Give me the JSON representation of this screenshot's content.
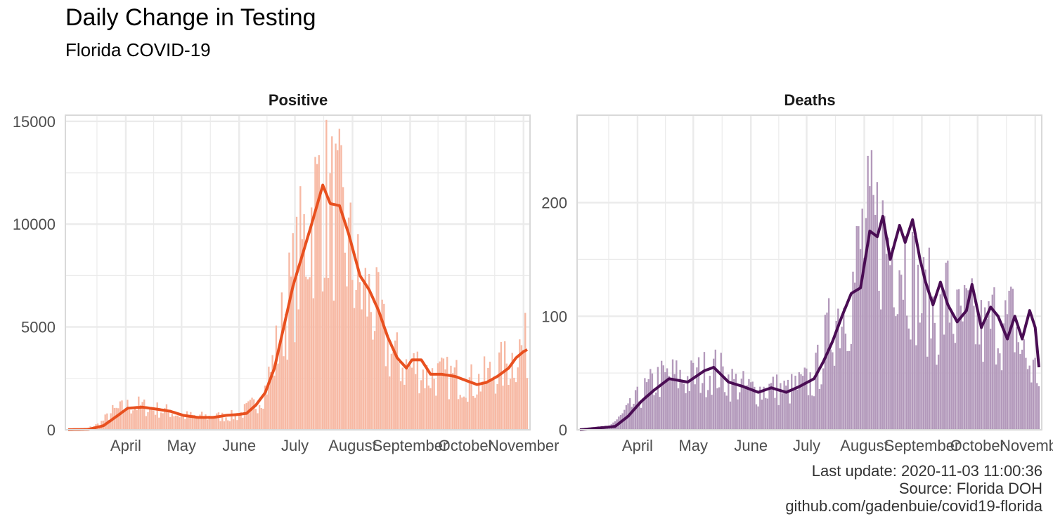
{
  "title": "Daily Change in Testing",
  "subtitle": "Florida COVID-19",
  "caption": {
    "line1": "Last update: 2020-11-03 11:00:36",
    "line2": "Source: Florida DOH",
    "line3": "github.com/gadenbuie/covid19-florida"
  },
  "colors": {
    "positive_bar": "#f7b9a4",
    "positive_line": "#e8501f",
    "deaths_bar": "#b399bb",
    "deaths_line": "#4a0d54",
    "grid": "#ebebeb",
    "panel_border": "#d9d9d9"
  },
  "chart_data": [
    {
      "type": "bar",
      "panel": "Positive",
      "x_start": "2020-03-01",
      "x_end": "2020-11-03",
      "xticks": [
        {
          "date": "2020-04-01",
          "label": "April"
        },
        {
          "date": "2020-05-01",
          "label": "May"
        },
        {
          "date": "2020-06-01",
          "label": "June"
        },
        {
          "date": "2020-07-01",
          "label": "July"
        },
        {
          "date": "2020-08-01",
          "label": "August"
        },
        {
          "date": "2020-09-01",
          "label": "September"
        },
        {
          "date": "2020-10-01",
          "label": "October"
        },
        {
          "date": "2020-11-01",
          "label": "November"
        }
      ],
      "yticks": [
        0,
        5000,
        10000,
        15000
      ],
      "ylim": [
        0,
        15300
      ],
      "daily_keypoints": [
        [
          "2020-03-01",
          0
        ],
        [
          "2020-03-10",
          30
        ],
        [
          "2020-03-18",
          300
        ],
        [
          "2020-03-25",
          900
        ],
        [
          "2020-04-01",
          1150
        ],
        [
          "2020-04-08",
          1200
        ],
        [
          "2020-04-15",
          1050
        ],
        [
          "2020-04-25",
          900
        ],
        [
          "2020-05-01",
          700
        ],
        [
          "2020-05-10",
          650
        ],
        [
          "2020-05-20",
          650
        ],
        [
          "2020-05-31",
          700
        ],
        [
          "2020-06-05",
          1000
        ],
        [
          "2020-06-10",
          1300
        ],
        [
          "2020-06-15",
          2000
        ],
        [
          "2020-06-20",
          3500
        ],
        [
          "2020-06-25",
          5500
        ],
        [
          "2020-07-01",
          7500
        ],
        [
          "2020-07-05",
          9000
        ],
        [
          "2020-07-10",
          10500
        ],
        [
          "2020-07-15",
          11800
        ],
        [
          "2020-07-20",
          11000
        ],
        [
          "2020-07-25",
          10500
        ],
        [
          "2020-07-31",
          8500
        ],
        [
          "2020-08-05",
          7000
        ],
        [
          "2020-08-10",
          6500
        ],
        [
          "2020-08-15",
          5500
        ],
        [
          "2020-08-20",
          4000
        ],
        [
          "2020-08-25",
          3500
        ],
        [
          "2020-08-31",
          3000
        ],
        [
          "2020-09-05",
          3200
        ],
        [
          "2020-09-10",
          2700
        ],
        [
          "2020-09-15",
          2700
        ],
        [
          "2020-09-20",
          2600
        ],
        [
          "2020-09-25",
          2600
        ],
        [
          "2020-10-01",
          2500
        ],
        [
          "2020-10-05",
          2300
        ],
        [
          "2020-10-10",
          2500
        ],
        [
          "2020-10-15",
          2800
        ],
        [
          "2020-10-20",
          3100
        ],
        [
          "2020-10-25",
          3400
        ],
        [
          "2020-10-30",
          4000
        ],
        [
          "2020-11-03",
          4100
        ]
      ],
      "rolling_avg": [
        [
          "2020-03-01",
          0
        ],
        [
          "2020-03-12",
          20
        ],
        [
          "2020-03-20",
          200
        ],
        [
          "2020-03-27",
          650
        ],
        [
          "2020-04-02",
          1050
        ],
        [
          "2020-04-10",
          1100
        ],
        [
          "2020-04-18",
          1000
        ],
        [
          "2020-04-25",
          900
        ],
        [
          "2020-05-02",
          700
        ],
        [
          "2020-05-10",
          600
        ],
        [
          "2020-05-18",
          600
        ],
        [
          "2020-05-25",
          700
        ],
        [
          "2020-06-01",
          750
        ],
        [
          "2020-06-05",
          800
        ],
        [
          "2020-06-10",
          1200
        ],
        [
          "2020-06-15",
          1800
        ],
        [
          "2020-06-20",
          3000
        ],
        [
          "2020-06-25",
          5000
        ],
        [
          "2020-06-30",
          7000
        ],
        [
          "2020-07-05",
          8500
        ],
        [
          "2020-07-10",
          10000
        ],
        [
          "2020-07-16",
          11900
        ],
        [
          "2020-07-20",
          11000
        ],
        [
          "2020-07-25",
          10900
        ],
        [
          "2020-07-30",
          9500
        ],
        [
          "2020-08-05",
          7500
        ],
        [
          "2020-08-10",
          6800
        ],
        [
          "2020-08-15",
          5800
        ],
        [
          "2020-08-20",
          4500
        ],
        [
          "2020-08-25",
          3500
        ],
        [
          "2020-08-30",
          3000
        ],
        [
          "2020-09-02",
          3400
        ],
        [
          "2020-09-07",
          3400
        ],
        [
          "2020-09-12",
          2700
        ],
        [
          "2020-09-18",
          2700
        ],
        [
          "2020-09-25",
          2600
        ],
        [
          "2020-10-01",
          2400
        ],
        [
          "2020-10-07",
          2200
        ],
        [
          "2020-10-12",
          2300
        ],
        [
          "2020-10-18",
          2600
        ],
        [
          "2020-10-24",
          3000
        ],
        [
          "2020-10-28",
          3500
        ],
        [
          "2020-11-01",
          3800
        ],
        [
          "2020-11-03",
          3900
        ]
      ]
    },
    {
      "type": "bar",
      "panel": "Deaths",
      "x_start": "2020-03-01",
      "x_end": "2020-11-03",
      "xticks": [
        {
          "date": "2020-04-01",
          "label": "April"
        },
        {
          "date": "2020-05-01",
          "label": "May"
        },
        {
          "date": "2020-06-01",
          "label": "June"
        },
        {
          "date": "2020-07-01",
          "label": "July"
        },
        {
          "date": "2020-08-01",
          "label": "August"
        },
        {
          "date": "2020-09-01",
          "label": "September"
        },
        {
          "date": "2020-10-01",
          "label": "October"
        },
        {
          "date": "2020-11-01",
          "label": "November"
        }
      ],
      "yticks": [
        0,
        100,
        200
      ],
      "ylim": [
        0,
        277
      ],
      "daily_keypoints": [
        [
          "2020-03-01",
          0
        ],
        [
          "2020-03-15",
          2
        ],
        [
          "2020-03-22",
          10
        ],
        [
          "2020-03-28",
          20
        ],
        [
          "2020-04-05",
          35
        ],
        [
          "2020-04-12",
          45
        ],
        [
          "2020-04-20",
          48
        ],
        [
          "2020-04-28",
          45
        ],
        [
          "2020-05-05",
          50
        ],
        [
          "2020-05-12",
          55
        ],
        [
          "2020-05-20",
          45
        ],
        [
          "2020-05-28",
          38
        ],
        [
          "2020-06-05",
          35
        ],
        [
          "2020-06-12",
          38
        ],
        [
          "2020-06-20",
          35
        ],
        [
          "2020-06-28",
          40
        ],
        [
          "2020-07-05",
          45
        ],
        [
          "2020-07-10",
          70
        ],
        [
          "2020-07-15",
          95
        ],
        [
          "2020-07-20",
          110
        ],
        [
          "2020-07-25",
          120
        ],
        [
          "2020-07-31",
          170
        ],
        [
          "2020-08-05",
          180
        ],
        [
          "2020-08-10",
          175
        ],
        [
          "2020-08-15",
          165
        ],
        [
          "2020-08-20",
          165
        ],
        [
          "2020-08-25",
          150
        ],
        [
          "2020-08-31",
          115
        ],
        [
          "2020-09-05",
          115
        ],
        [
          "2020-09-10",
          95
        ],
        [
          "2020-09-15",
          120
        ],
        [
          "2020-09-20",
          95
        ],
        [
          "2020-09-25",
          100
        ],
        [
          "2020-09-30",
          95
        ],
        [
          "2020-10-05",
          85
        ],
        [
          "2020-10-10",
          100
        ],
        [
          "2020-10-15",
          90
        ],
        [
          "2020-10-20",
          100
        ],
        [
          "2020-10-25",
          70
        ],
        [
          "2020-10-30",
          55
        ],
        [
          "2020-11-03",
          50
        ]
      ],
      "rolling_avg": [
        [
          "2020-03-01",
          0
        ],
        [
          "2020-03-20",
          3
        ],
        [
          "2020-03-27",
          12
        ],
        [
          "2020-04-03",
          25
        ],
        [
          "2020-04-10",
          35
        ],
        [
          "2020-04-18",
          45
        ],
        [
          "2020-04-28",
          42
        ],
        [
          "2020-05-07",
          52
        ],
        [
          "2020-05-12",
          55
        ],
        [
          "2020-05-20",
          42
        ],
        [
          "2020-05-28",
          38
        ],
        [
          "2020-06-05",
          33
        ],
        [
          "2020-06-12",
          37
        ],
        [
          "2020-06-20",
          33
        ],
        [
          "2020-06-27",
          38
        ],
        [
          "2020-07-05",
          45
        ],
        [
          "2020-07-10",
          60
        ],
        [
          "2020-07-15",
          78
        ],
        [
          "2020-07-20",
          100
        ],
        [
          "2020-07-25",
          120
        ],
        [
          "2020-07-30",
          125
        ],
        [
          "2020-08-04",
          175
        ],
        [
          "2020-08-08",
          170
        ],
        [
          "2020-08-11",
          188
        ],
        [
          "2020-08-15",
          150
        ],
        [
          "2020-08-20",
          180
        ],
        [
          "2020-08-23",
          165
        ],
        [
          "2020-08-27",
          185
        ],
        [
          "2020-08-31",
          150
        ],
        [
          "2020-09-03",
          130
        ],
        [
          "2020-09-07",
          110
        ],
        [
          "2020-09-11",
          130
        ],
        [
          "2020-09-15",
          110
        ],
        [
          "2020-09-20",
          95
        ],
        [
          "2020-09-25",
          105
        ],
        [
          "2020-09-28",
          128
        ],
        [
          "2020-10-03",
          90
        ],
        [
          "2020-10-08",
          108
        ],
        [
          "2020-10-12",
          100
        ],
        [
          "2020-10-17",
          80
        ],
        [
          "2020-10-21",
          100
        ],
        [
          "2020-10-25",
          80
        ],
        [
          "2020-10-29",
          105
        ],
        [
          "2020-11-01",
          90
        ],
        [
          "2020-11-03",
          55
        ]
      ]
    }
  ]
}
